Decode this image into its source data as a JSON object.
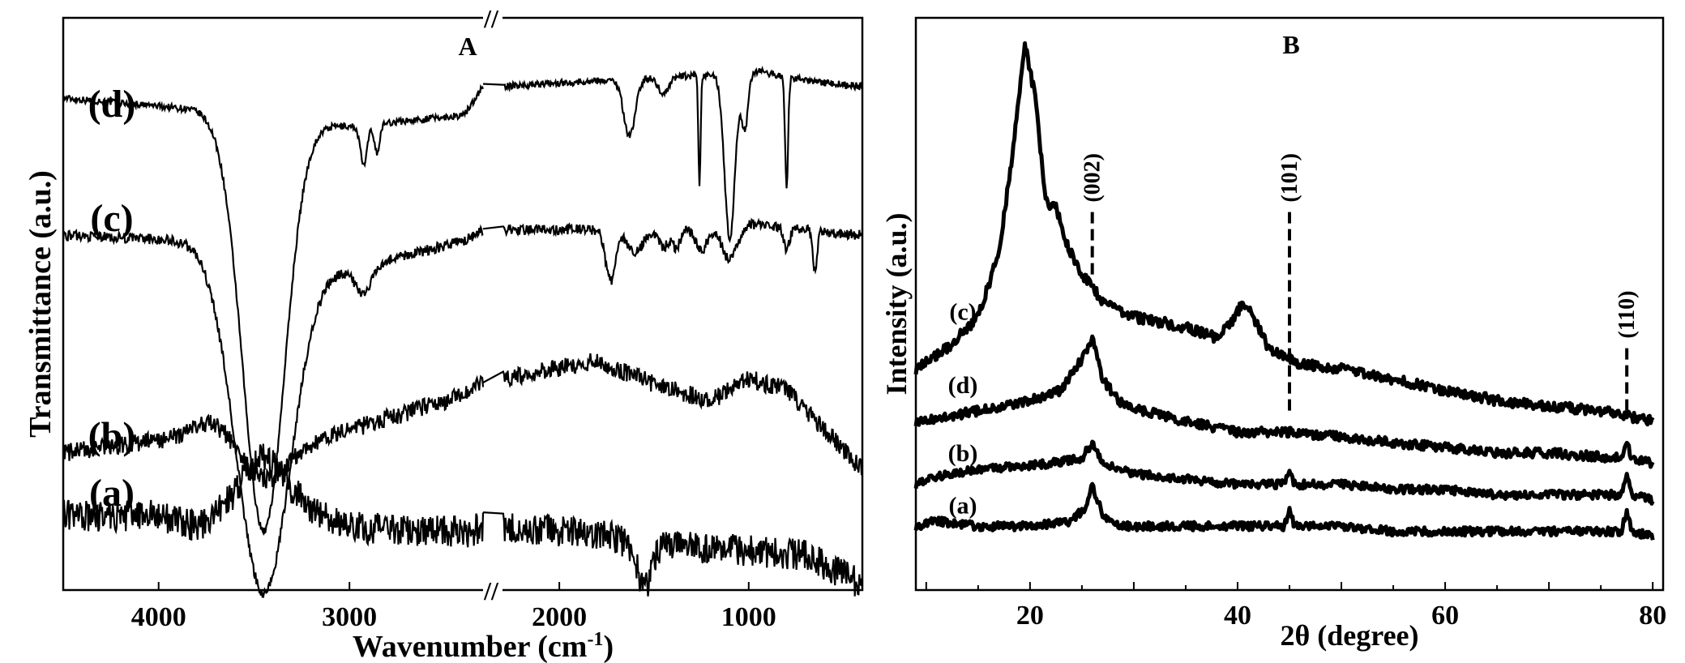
{
  "chart_data": [
    {
      "panel": "A",
      "type": "line",
      "title": "A",
      "xlabel": "Wavenumber (cm",
      "xlabel_sup": "-1",
      "xlabel_end": ")",
      "ylabel": "Transmittance (a.u.)",
      "axis_break_mark": "//",
      "x_segments": [
        [
          4500,
          2300
        ],
        [
          2300,
          400
        ]
      ],
      "x_ticks": [
        {
          "value": 4000,
          "label": "4000"
        },
        {
          "value": 3000,
          "label": "3000"
        },
        {
          "value": 2000,
          "label": "2000"
        },
        {
          "value": 1000,
          "label": "1000"
        }
      ],
      "y_range": [
        0,
        100
      ],
      "series": [
        {
          "name": "(d)",
          "label_at": 85,
          "baseline": 86,
          "noise": 0.6,
          "features": [
            [
              3450,
              110,
              72,
              1
            ],
            [
              2925,
              18,
              7,
              0
            ],
            [
              2855,
              14,
              5,
              0
            ],
            [
              1630,
              30,
              10,
              0
            ],
            [
              1450,
              25,
              3,
              0
            ],
            [
              1260,
              6,
              19,
              0
            ],
            [
              1100,
              28,
              29,
              0
            ],
            [
              1020,
              18,
              10,
              0
            ],
            [
              800,
              8,
              19,
              0
            ]
          ],
          "curve_pts": [
            [
              4500,
              86
            ],
            [
              3800,
              84
            ],
            [
              3650,
              83
            ],
            [
              3000,
              81
            ],
            [
              2400,
              83
            ],
            [
              2300,
              88
            ],
            [
              1800,
              89
            ],
            [
              1200,
              90
            ],
            [
              1000,
              91
            ],
            [
              700,
              89
            ],
            [
              400,
              88
            ]
          ]
        },
        {
          "name": "(c)",
          "label_at": 65,
          "baseline": 62,
          "noise": 0.9,
          "features": [
            [
              3450,
              140,
              58,
              1
            ],
            [
              2925,
              40,
              5,
              0
            ],
            [
              1730,
              25,
              9,
              0
            ],
            [
              1600,
              40,
              4,
              0
            ],
            [
              1450,
              30,
              3,
              0
            ],
            [
              1380,
              20,
              3,
              0
            ],
            [
              1250,
              30,
              4,
              0
            ],
            [
              1100,
              40,
              6,
              0
            ],
            [
              800,
              15,
              4,
              0
            ],
            [
              650,
              12,
              7,
              0
            ]
          ],
          "curve_pts": [
            [
              4500,
              62
            ],
            [
              3800,
              61
            ],
            [
              3600,
              58
            ],
            [
              3000,
              56
            ],
            [
              2400,
              61
            ],
            [
              2300,
              63
            ],
            [
              1800,
              63
            ],
            [
              1400,
              63
            ],
            [
              1000,
              64
            ],
            [
              700,
              63
            ],
            [
              400,
              62
            ]
          ]
        },
        {
          "name": "(b)",
          "label_at": 27,
          "baseline": 25,
          "noise": 1.6,
          "features": [
            [
              3450,
              120,
              5,
              0
            ],
            [
              3700,
              100,
              -3,
              0
            ]
          ],
          "curve_pts": [
            [
              4500,
              24
            ],
            [
              3800,
              27
            ],
            [
              3400,
              24
            ],
            [
              3000,
              28
            ],
            [
              2400,
              34
            ],
            [
              2300,
              37
            ],
            [
              1800,
              40
            ],
            [
              1500,
              36
            ],
            [
              1200,
              33
            ],
            [
              1000,
              37
            ],
            [
              800,
              35
            ],
            [
              400,
              21
            ]
          ]
        },
        {
          "name": "(a)",
          "label_at": 17,
          "baseline": 13,
          "noise": 2.8,
          "features": [
            [
              3450,
              120,
              -6,
              0
            ],
            [
              1550,
              40,
              7,
              0
            ]
          ],
          "curve_pts": [
            [
              4500,
              13
            ],
            [
              4000,
              13
            ],
            [
              3800,
              11
            ],
            [
              3450,
              17
            ],
            [
              3000,
              11
            ],
            [
              2400,
              10
            ],
            [
              2300,
              11
            ],
            [
              1800,
              10
            ],
            [
              1600,
              8
            ],
            [
              1000,
              7
            ],
            [
              700,
              6
            ],
            [
              400,
              1
            ]
          ]
        }
      ]
    },
    {
      "panel": "B",
      "type": "line",
      "title": "B",
      "xlabel": "2θ (degree)",
      "ylabel": "Intensity (a.u.)",
      "xlim": [
        9,
        81
      ],
      "ylim": [
        0,
        100
      ],
      "x_ticks": [
        {
          "value": 20,
          "label": "20"
        },
        {
          "value": 40,
          "label": "40"
        },
        {
          "value": 60,
          "label": "60"
        },
        {
          "value": 80,
          "label": "80"
        }
      ],
      "reflections": [
        {
          "label": "(002)",
          "x": 26,
          "y_from": 66,
          "y_to": 54
        },
        {
          "label": "(101)",
          "x": 45,
          "y_from": 66,
          "y_to": 28
        },
        {
          "label": "(110)",
          "x": 77.5,
          "y_from": 40,
          "y_to": 28
        }
      ],
      "series": [
        {
          "name": "(c)",
          "label_at": 47,
          "noise": 1.0,
          "curve_pts": [
            [
              9,
              36
            ],
            [
              12,
              40
            ],
            [
              15,
              46
            ],
            [
              17,
              58
            ],
            [
              18.5,
              80
            ],
            [
              19.5,
              98
            ],
            [
              20.5,
              88
            ],
            [
              21.5,
              68
            ],
            [
              22.5,
              67
            ],
            [
              23.5,
              60
            ],
            [
              25,
              54
            ],
            [
              27,
              49
            ],
            [
              30,
              46
            ],
            [
              35,
              44
            ],
            [
              38,
              42
            ],
            [
              39.5,
              45
            ],
            [
              40.5,
              49
            ],
            [
              41.5,
              46
            ],
            [
              43,
              40
            ],
            [
              46,
              37
            ],
            [
              50,
              36
            ],
            [
              55,
              34
            ],
            [
              60,
              32
            ],
            [
              65,
              30
            ],
            [
              70,
              29
            ],
            [
              75,
              28
            ],
            [
              80,
              26
            ]
          ]
        },
        {
          "name": "(d)",
          "label_at": 33,
          "noise": 0.9,
          "curve_pts": [
            [
              9,
              26
            ],
            [
              12,
              27
            ],
            [
              15,
              28
            ],
            [
              20,
              30
            ],
            [
              23,
              32
            ],
            [
              25,
              38
            ],
            [
              26,
              42
            ],
            [
              27,
              34
            ],
            [
              29,
              29
            ],
            [
              35,
              26
            ],
            [
              40,
              24
            ],
            [
              45,
              24
            ],
            [
              50,
              23
            ],
            [
              55,
              22
            ],
            [
              60,
              21
            ],
            [
              65,
              20
            ],
            [
              70,
              20
            ],
            [
              77,
              19
            ],
            [
              77.5,
              22
            ],
            [
              78,
              19
            ],
            [
              80,
              18
            ]
          ]
        },
        {
          "name": "(b)",
          "label_at": 20,
          "noise": 0.8,
          "curve_pts": [
            [
              9,
              14
            ],
            [
              12,
              16
            ],
            [
              16,
              17
            ],
            [
              22,
              18
            ],
            [
              25,
              19
            ],
            [
              26,
              22
            ],
            [
              27,
              18
            ],
            [
              30,
              16
            ],
            [
              35,
              15
            ],
            [
              40,
              14
            ],
            [
              44.5,
              14
            ],
            [
              45,
              16
            ],
            [
              45.5,
              14
            ],
            [
              50,
              14
            ],
            [
              55,
              13
            ],
            [
              60,
              13
            ],
            [
              65,
              12
            ],
            [
              70,
              12
            ],
            [
              77,
              12
            ],
            [
              77.5,
              16
            ],
            [
              78,
              12
            ],
            [
              80,
              11
            ]
          ]
        },
        {
          "name": "(a)",
          "label_at": 10,
          "noise": 0.8,
          "curve_pts": [
            [
              9,
              6
            ],
            [
              11,
              7
            ],
            [
              15,
              6
            ],
            [
              20,
              6
            ],
            [
              24,
              7
            ],
            [
              25.5,
              10
            ],
            [
              26,
              14
            ],
            [
              27,
              8
            ],
            [
              29,
              6
            ],
            [
              35,
              6
            ],
            [
              40,
              6
            ],
            [
              44.5,
              6
            ],
            [
              45,
              9
            ],
            [
              45.5,
              6
            ],
            [
              50,
              6
            ],
            [
              55,
              5
            ],
            [
              60,
              5
            ],
            [
              65,
              5
            ],
            [
              70,
              5
            ],
            [
              77,
              5
            ],
            [
              77.5,
              9
            ],
            [
              78,
              5
            ],
            [
              80,
              4
            ]
          ]
        }
      ]
    }
  ]
}
